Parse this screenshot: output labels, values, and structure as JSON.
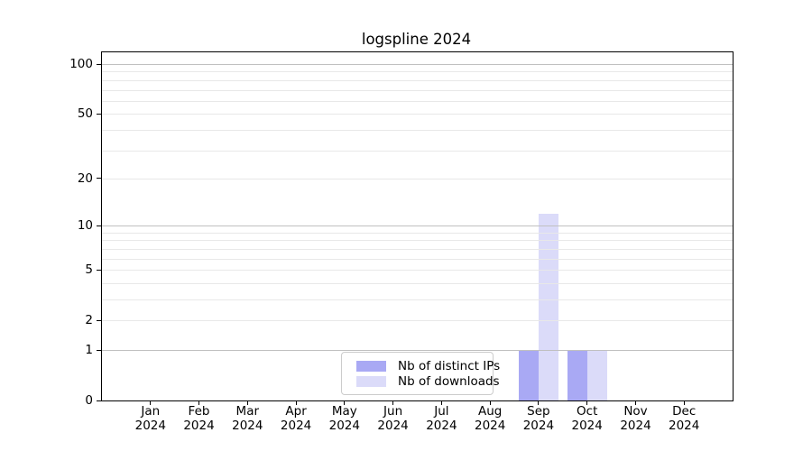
{
  "chart_data": {
    "type": "bar",
    "title": "logspline 2024",
    "categories": [
      {
        "month": "Jan",
        "year": "2024"
      },
      {
        "month": "Feb",
        "year": "2024"
      },
      {
        "month": "Mar",
        "year": "2024"
      },
      {
        "month": "Apr",
        "year": "2024"
      },
      {
        "month": "May",
        "year": "2024"
      },
      {
        "month": "Jun",
        "year": "2024"
      },
      {
        "month": "Jul",
        "year": "2024"
      },
      {
        "month": "Aug",
        "year": "2024"
      },
      {
        "month": "Sep",
        "year": "2024"
      },
      {
        "month": "Oct",
        "year": "2024"
      },
      {
        "month": "Nov",
        "year": "2024"
      },
      {
        "month": "Dec",
        "year": "2024"
      }
    ],
    "series": [
      {
        "name": "Nb of distinct IPs",
        "color": "#a9a9f4",
        "values": [
          0,
          0,
          0,
          0,
          0,
          0,
          0,
          0,
          1,
          1,
          0,
          0
        ]
      },
      {
        "name": "Nb of downloads",
        "color": "#dbdbf9",
        "values": [
          0,
          0,
          0,
          0,
          0,
          0,
          0,
          0,
          12,
          1,
          0,
          0
        ]
      }
    ],
    "y_axis": {
      "scale": "log1p",
      "labeled_ticks": [
        0,
        1,
        2,
        5,
        10,
        20,
        50,
        100
      ],
      "major_gridlines": [
        1,
        10,
        100
      ],
      "minor_gridlines": [
        2,
        3,
        4,
        5,
        6,
        7,
        8,
        9,
        20,
        30,
        40,
        50,
        60,
        70,
        80,
        90
      ],
      "ylim": [
        0,
        118
      ]
    },
    "legend": {
      "position": "lower center"
    },
    "xlabel": "",
    "ylabel": ""
  },
  "colors": {
    "bar_distinct_ips": "#a9a9f4",
    "bar_downloads": "#dbdbf9",
    "major_grid": "#c0c0c0",
    "minor_grid": "#e8e8e8",
    "axis": "#000000",
    "legend_border": "#cccccc"
  }
}
